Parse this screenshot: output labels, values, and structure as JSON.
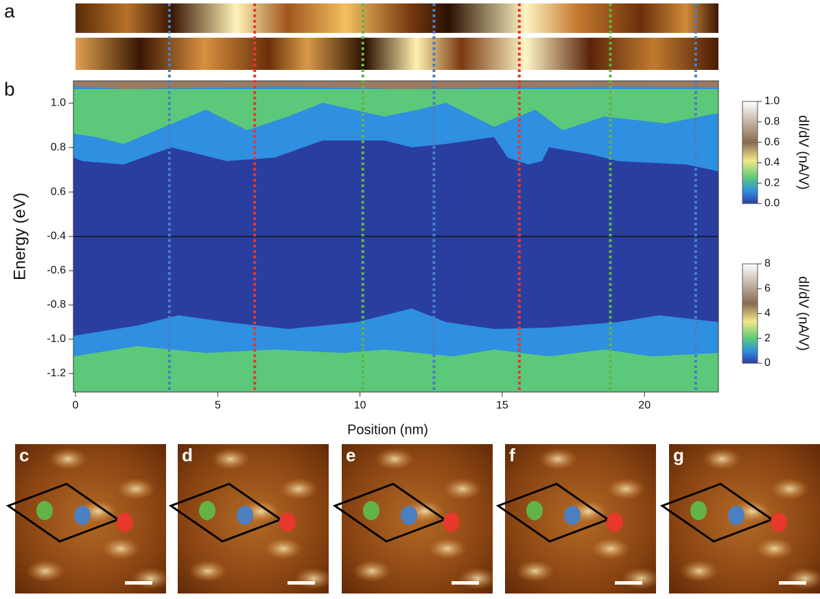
{
  "panel_labels": [
    "a",
    "b",
    "c",
    "d",
    "e",
    "f",
    "g"
  ],
  "chart_data": {
    "type": "heatmap",
    "x_label": "Position (nm)",
    "y_label": "Energy (eV)",
    "xlim": [
      0,
      22.6
    ],
    "xticks": [
      0,
      5,
      10,
      15,
      20
    ],
    "upper": {
      "ylim": [
        0.4,
        1.1
      ],
      "yticks": [
        0.6,
        0.8,
        {
          "value": 1,
          "label": "1.0"
        }
      ]
    },
    "lower": {
      "ylim": [
        -1.3,
        -0.4
      ],
      "yticks": [
        -0.4,
        -0.6,
        -0.8,
        {
          "value": -1,
          "label": "-1.0"
        },
        -1.2
      ]
    },
    "markers": [
      {
        "color": "#4a7fc1",
        "x": 3.3
      },
      {
        "color": "#e8372b",
        "x": 6.3
      },
      {
        "color": "#62b446",
        "x": 10.1
      },
      {
        "color": "#4a7fc1",
        "x": 12.6
      },
      {
        "color": "#e8372b",
        "x": 15.6
      },
      {
        "color": "#62b446",
        "x": 18.8
      },
      {
        "color": "#4a7fc1",
        "x": 21.8
      }
    ],
    "colorbars": [
      {
        "label": "dI/dV (nA/V)",
        "lim": [
          0,
          1
        ],
        "ticks": [
          {
            "value": 0,
            "label": "0.0"
          },
          0.2,
          0.4,
          0.6,
          0.8,
          {
            "value": 1,
            "label": "1.0"
          }
        ]
      },
      {
        "label": "dI/dV (nA/V)",
        "lim": [
          0,
          8
        ],
        "ticks": [
          0,
          2,
          4,
          6,
          8
        ]
      }
    ]
  }
}
